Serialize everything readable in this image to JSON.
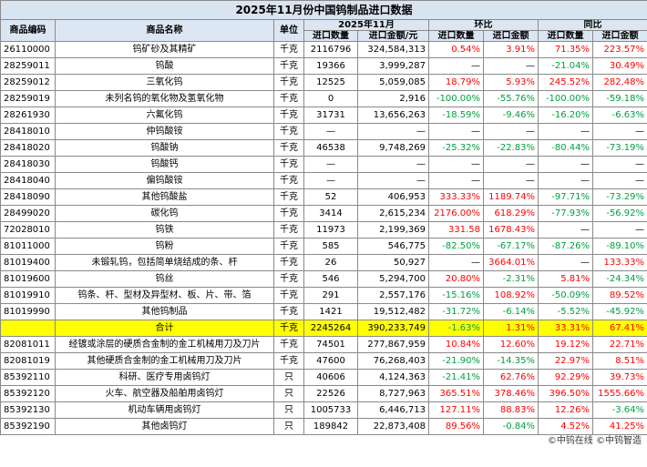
{
  "title": "2025年11月份中国钨制品进口数据",
  "header": {
    "code": "商品编码",
    "name": "商品名称",
    "unit": "单位",
    "period": "2025年11月",
    "mom": "环比",
    "yoy": "同比",
    "sub": [
      "进口数量",
      "进口金额/元",
      "进口数量",
      "进口金额",
      "进口数量",
      "进口金额"
    ]
  },
  "colors": {
    "positive": "#ff0000",
    "negative": "#00a040",
    "highlight": "#ffff00"
  },
  "highlight_row": 17,
  "table": {
    "rows": [
      [
        "26110000",
        "钨矿砂及其精矿",
        "千克",
        "2116796",
        "324,584,313",
        "0.54%",
        "3.91%",
        "71.35%",
        "223.57%"
      ],
      [
        "28259011",
        "钨酸",
        "千克",
        "19366",
        "3,999,287",
        "—",
        "—",
        "-21.04%",
        "30.49%"
      ],
      [
        "28259012",
        "三氧化钨",
        "千克",
        "12525",
        "5,059,085",
        "18.79%",
        "5.93%",
        "245.52%",
        "282.48%"
      ],
      [
        "28259019",
        "未列名钨的氧化物及氢氧化物",
        "千克",
        "0",
        "2,916",
        "-100.00%",
        "-55.76%",
        "-100.00%",
        "-59.18%"
      ],
      [
        "28261930",
        "六氟化钨",
        "千克",
        "31731",
        "13,656,263",
        "-18.59%",
        "-9.46%",
        "-16.20%",
        "-6.63%"
      ],
      [
        "28418010",
        "仲钨酸铵",
        "千克",
        "—",
        "—",
        "—",
        "—",
        "—",
        "—"
      ],
      [
        "28418020",
        "钨酸钠",
        "千克",
        "46538",
        "9,748,269",
        "-25.32%",
        "-22.83%",
        "-80.44%",
        "-73.19%"
      ],
      [
        "28418030",
        "钨酸钙",
        "千克",
        "—",
        "—",
        "—",
        "—",
        "—",
        "—"
      ],
      [
        "28418040",
        "偏钨酸铵",
        "千克",
        "—",
        "—",
        "—",
        "—",
        "—",
        "—"
      ],
      [
        "28418090",
        "其他钨酸盐",
        "千克",
        "52",
        "406,953",
        "333.33%",
        "1189.74%",
        "-97.71%",
        "-73.29%"
      ],
      [
        "28499020",
        "碳化钨",
        "千克",
        "3414",
        "2,615,234",
        "2176.00%",
        "618.29%",
        "-77.93%",
        "-56.92%"
      ],
      [
        "72028010",
        "钨铁",
        "千克",
        "11973",
        "2,199,369",
        "331.58",
        "1678.43%",
        "—",
        "—"
      ],
      [
        "81011000",
        "钨粉",
        "千克",
        "585",
        "546,775",
        "-82.50%",
        "-67.17%",
        "-87.26%",
        "-89.10%"
      ],
      [
        "81019400",
        "未锻轧钨，包括简单烧结成的条、杆",
        "千克",
        "26",
        "50,927",
        "—",
        "3664.01%",
        "—",
        "133.33%"
      ],
      [
        "81019600",
        "钨丝",
        "千克",
        "546",
        "5,294,700",
        "20.80%",
        "-2.31%",
        "5.81%",
        "-24.34%"
      ],
      [
        "81019910",
        "钨条、杆、型材及异型材、板、片、带、箔",
        "千克",
        "291",
        "2,557,176",
        "-15.16%",
        "108.92%",
        "-50.09%",
        "89.52%"
      ],
      [
        "81019990",
        "其他钨制品",
        "千克",
        "1421",
        "19,512,482",
        "-31.72%",
        "-6.14%",
        "-5.52%",
        "-45.92%"
      ],
      [
        null,
        "合计",
        "千克",
        "2245264",
        "390,233,749",
        "-1.63%",
        "1.31%",
        "33.31%",
        "67.41%"
      ],
      [
        "82081011",
        "经镀或涂层的硬质合金制的金工机械用刀及刀片",
        "千克",
        "74501",
        "277,867,959",
        "10.84%",
        "12.60%",
        "19.12%",
        "22.71%"
      ],
      [
        "82081019",
        "其他硬质合金制的金工机械用刀及刀片",
        "千克",
        "47600",
        "76,268,403",
        "-21.90%",
        "-14.35%",
        "22.97%",
        "8.51%"
      ],
      [
        "85392110",
        "科研、医疗专用卤钨灯",
        "只",
        "40606",
        "4,124,363",
        "-21.41%",
        "62.76%",
        "92.29%",
        "39.73%"
      ],
      [
        "85392120",
        "火车、航空器及船舶用卤钨灯",
        "只",
        "22526",
        "8,727,963",
        "365.51%",
        "378.46%",
        "396.50%",
        "1555.66%"
      ],
      [
        "85392130",
        "机动车辆用卤钨灯",
        "只",
        "1005733",
        "6,446,713",
        "127.11%",
        "88.83%",
        "12.26%",
        "-3.64%"
      ],
      [
        "85392190",
        "其他卤钨灯",
        "只",
        "189842",
        "22,873,408",
        "89.56%",
        "-0.84%",
        "4.52%",
        "41.25%"
      ]
    ]
  },
  "footer": "©中钨在线 ©中钨智造"
}
